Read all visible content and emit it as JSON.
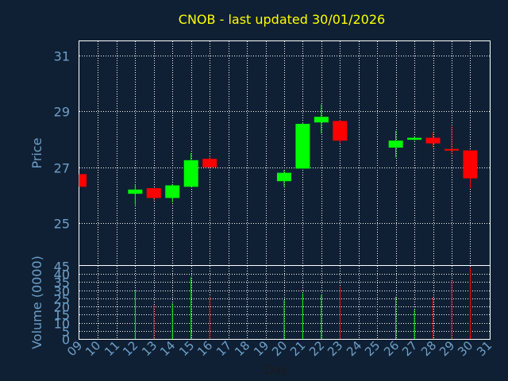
{
  "chart_data": {
    "type": "candlestick",
    "title": "CNOB - last updated 30/01/2026",
    "xlabel": "Day",
    "x_ticks": [
      "09",
      "10",
      "11",
      "12",
      "13",
      "14",
      "15",
      "16",
      "17",
      "18",
      "19",
      "20",
      "21",
      "22",
      "23",
      "24",
      "25",
      "26",
      "27",
      "28",
      "29",
      "30",
      "31"
    ],
    "price_panel": {
      "ylabel": "Price",
      "ylim": [
        23.5,
        31.5
      ],
      "y_ticks": [
        "25",
        "27",
        "29",
        "31"
      ],
      "grid": true
    },
    "volume_panel": {
      "ylabel": "Volume (0000)",
      "ylim": [
        0,
        45
      ],
      "y_ticks": [
        "0",
        "5",
        "10",
        "15",
        "20",
        "25",
        "30",
        "35",
        "40",
        "45"
      ],
      "grid": true
    },
    "candles": [
      {
        "day": 9,
        "open": 26.75,
        "high": 26.75,
        "low": 26.3,
        "close": 26.3,
        "volume": 0
      },
      {
        "day": 12,
        "open": 26.05,
        "high": 26.4,
        "low": 25.65,
        "close": 26.2,
        "volume": 30
      },
      {
        "day": 13,
        "open": 26.25,
        "high": 26.25,
        "low": 25.8,
        "close": 25.9,
        "volume": 21
      },
      {
        "day": 14,
        "open": 25.9,
        "high": 26.4,
        "low": 25.75,
        "close": 26.35,
        "volume": 22
      },
      {
        "day": 15,
        "open": 26.3,
        "high": 27.5,
        "low": 26.3,
        "close": 27.25,
        "volume": 38
      },
      {
        "day": 16,
        "open": 27.3,
        "high": 27.4,
        "low": 26.95,
        "close": 27.0,
        "volume": 26
      },
      {
        "day": 20,
        "open": 26.5,
        "high": 26.9,
        "low": 26.3,
        "close": 26.8,
        "volume": 24
      },
      {
        "day": 21,
        "open": 26.95,
        "high": 28.6,
        "low": 26.95,
        "close": 28.55,
        "volume": 28
      },
      {
        "day": 22,
        "open": 28.6,
        "high": 29.25,
        "low": 28.2,
        "close": 28.8,
        "volume": 27
      },
      {
        "day": 23,
        "open": 28.65,
        "high": 28.7,
        "low": 27.85,
        "close": 27.95,
        "volume": 32
      },
      {
        "day": 26,
        "open": 27.7,
        "high": 28.3,
        "low": 27.35,
        "close": 27.95,
        "volume": 26
      },
      {
        "day": 27,
        "open": 27.98,
        "high": 28.1,
        "low": 27.95,
        "close": 28.05,
        "volume": 18
      },
      {
        "day": 28,
        "open": 28.05,
        "high": 28.25,
        "low": 27.7,
        "close": 27.85,
        "volume": 26
      },
      {
        "day": 29,
        "open": 27.65,
        "high": 28.45,
        "low": 27.45,
        "close": 27.6,
        "volume": 36
      },
      {
        "day": 30,
        "open": 27.6,
        "high": 27.6,
        "low": 26.25,
        "close": 26.6,
        "volume": 44
      }
    ],
    "colors": {
      "background": "#0f2034",
      "up": "#00ff00",
      "down": "#ff0000",
      "grid": "#ffffff",
      "axis_text": "#6f9fc8",
      "title": "#ffff00"
    }
  }
}
